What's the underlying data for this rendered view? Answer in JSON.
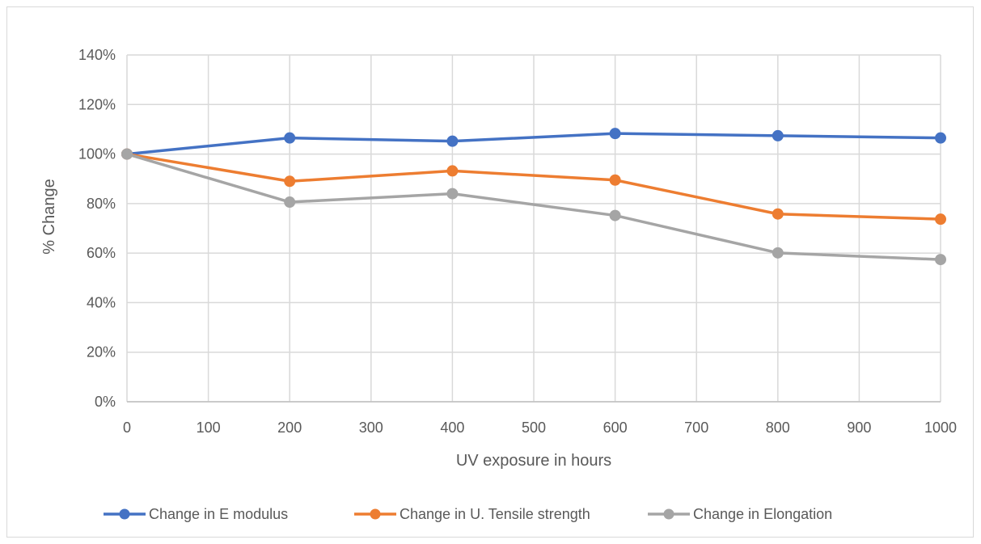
{
  "chart_data": {
    "type": "line",
    "xlabel": "UV exposure in hours",
    "ylabel": "% Change",
    "xlim": [
      0,
      1000
    ],
    "ylim": [
      0,
      140
    ],
    "x_ticks": [
      0,
      100,
      200,
      300,
      400,
      500,
      600,
      700,
      800,
      900,
      1000
    ],
    "y_ticks": [
      0,
      20,
      40,
      60,
      80,
      100,
      120,
      140
    ],
    "y_tick_labels": [
      "0%",
      "20%",
      "40%",
      "60%",
      "80%",
      "100%",
      "120%",
      "140%"
    ],
    "grid": true,
    "legend_position": "bottom",
    "x": [
      0,
      200,
      400,
      600,
      800,
      1000
    ],
    "series": [
      {
        "name": "Change in E modulus",
        "color": "#4472C4",
        "values": [
          100,
          106.5,
          105.2,
          108.3,
          107.4,
          106.5
        ]
      },
      {
        "name": "Change in U. Tensile strength",
        "color": "#ED7D31",
        "values": [
          100,
          89,
          93.2,
          89.5,
          75.8,
          73.7
        ]
      },
      {
        "name": "Change in Elongation",
        "color": "#A5A5A5",
        "values": [
          100,
          80.6,
          84,
          75.2,
          60.1,
          57.4
        ]
      }
    ]
  }
}
